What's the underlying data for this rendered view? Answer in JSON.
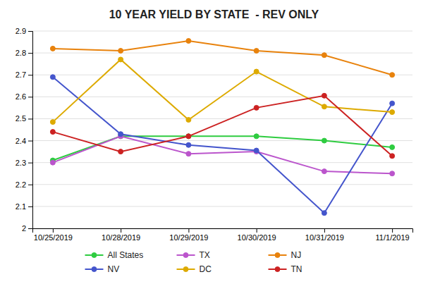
{
  "chart_data": {
    "type": "line",
    "title": "10 YEAR YIELD BY STATE  - REV ONLY",
    "categories": [
      "10/25/2019",
      "10/28/2019",
      "10/29/2019",
      "10/30/2019",
      "10/31/2019",
      "11/1/2019"
    ],
    "series": [
      {
        "name": "All States",
        "color": "#2ECC40",
        "marker": "circle",
        "values": [
          2.31,
          2.42,
          2.42,
          2.42,
          2.4,
          2.37
        ]
      },
      {
        "name": "TX",
        "color": "#BB55CC",
        "marker": "circle",
        "values": [
          2.3,
          2.42,
          2.34,
          2.35,
          2.26,
          2.25
        ]
      },
      {
        "name": "NJ",
        "color": "#E8820C",
        "marker": "circle",
        "values": [
          2.82,
          2.81,
          2.855,
          2.81,
          2.79,
          2.7
        ]
      },
      {
        "name": "NV",
        "color": "#4455CC",
        "marker": "circle",
        "values": [
          2.69,
          2.43,
          2.38,
          2.355,
          2.07,
          2.57
        ]
      },
      {
        "name": "DC",
        "color": "#DDAA00",
        "marker": "circle",
        "values": [
          2.485,
          2.77,
          2.495,
          2.715,
          2.555,
          2.53
        ]
      },
      {
        "name": "TN",
        "color": "#CC2222",
        "marker": "circle",
        "values": [
          2.44,
          2.35,
          2.42,
          2.55,
          2.605,
          2.33
        ]
      }
    ],
    "ylim": [
      2.0,
      2.9
    ],
    "yticks": [
      2.0,
      2.1,
      2.2,
      2.3,
      2.4,
      2.5,
      2.6,
      2.7,
      2.8,
      2.9
    ],
    "grid": true,
    "legend": "bottom"
  }
}
